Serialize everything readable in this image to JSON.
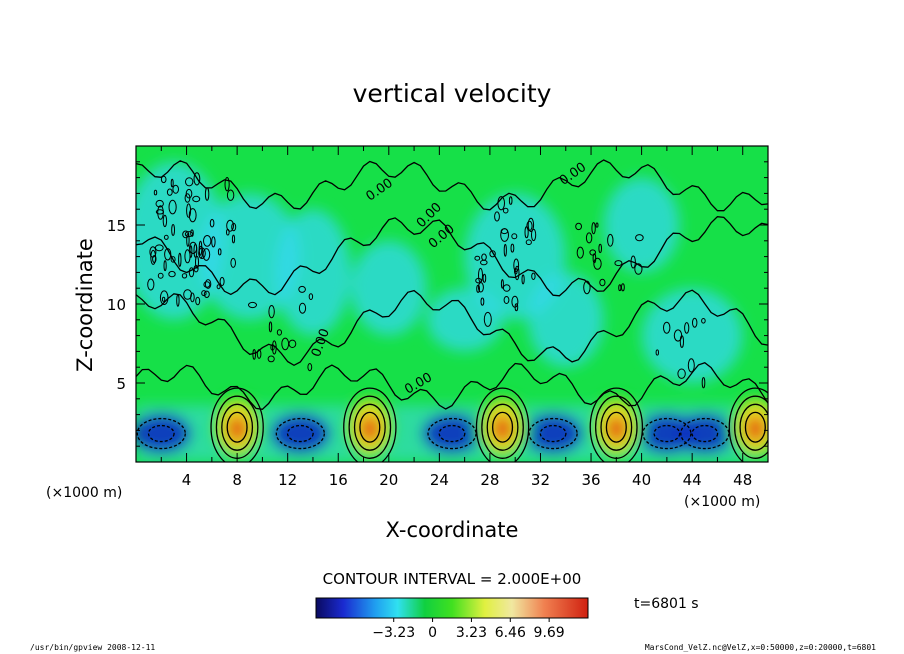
{
  "chart_data": {
    "type": "heatmap",
    "title": "vertical velocity",
    "xlabel": "X-coordinate",
    "ylabel": "Z-coordinate",
    "x_unit_left": "(×1000 m)",
    "x_unit_right": "(×1000 m)",
    "xlim": [
      0,
      50
    ],
    "ylim": [
      0,
      20
    ],
    "x_ticks": [
      4,
      8,
      12,
      16,
      20,
      24,
      28,
      32,
      36,
      40,
      44,
      48
    ],
    "y_ticks": [
      5,
      10,
      15
    ],
    "contour_interval_text": "CONTOUR INTERVAL = 2.000E+00",
    "contour_label": "0.00",
    "time_text": "t=6801 s",
    "colorbar_ticks": [
      "−3.23",
      "0",
      "3.23",
      "6.46",
      "9.69"
    ],
    "colorbar_range": [
      -9.69,
      12.92
    ],
    "updraft_cells_x": [
      8,
      18.5,
      29,
      38,
      49
    ],
    "downdraft_cells_x": [
      2,
      13,
      25,
      33,
      42,
      45
    ],
    "grid": false,
    "legend": "bottom"
  },
  "footer": {
    "left": "/usr/bin/gpview  2008-12-11",
    "right": "MarsCond_VelZ.nc@VelZ,x=0:50000,z=0:20000,t=6801"
  },
  "colors": {
    "field_background": "#16e048",
    "upper_cool": "#33d8ee",
    "cold": "#1030c0",
    "warm": "#f0e020",
    "hot": "#e03010"
  }
}
